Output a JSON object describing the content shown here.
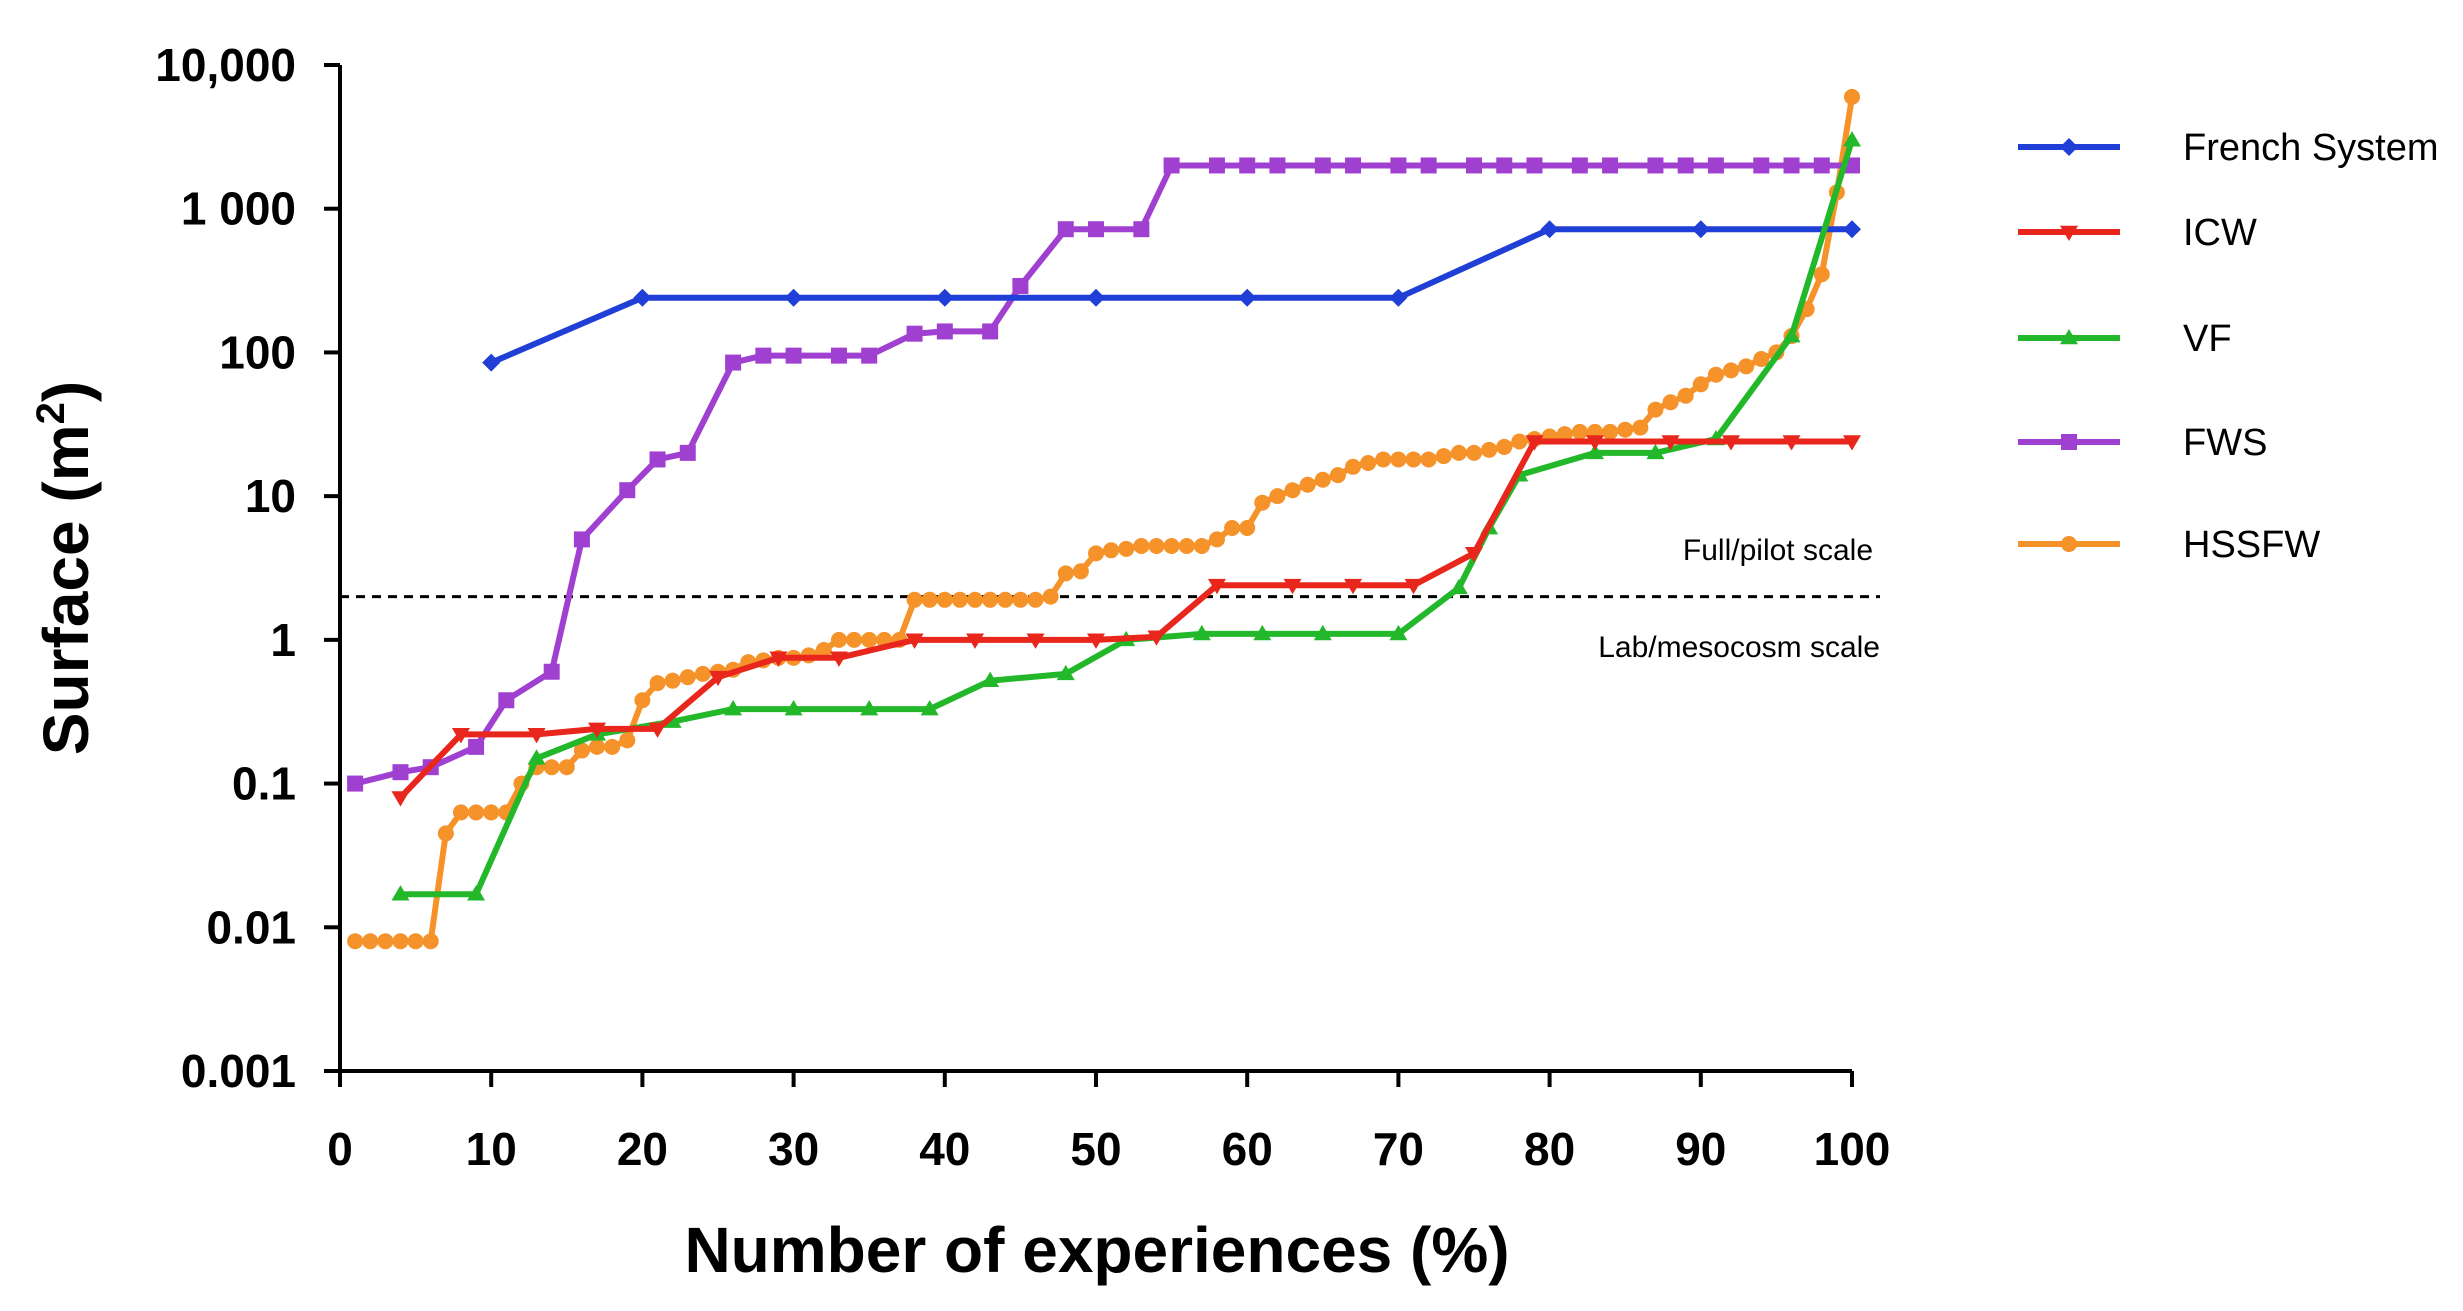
{
  "chart_data": {
    "type": "line",
    "title": "",
    "xlabel": "Number of experiences (%)",
    "ylabel": "Surface (m",
    "ylabel_superscript": "2",
    "ylabel_close": ")",
    "xlim": [
      0,
      100
    ],
    "ylim": [
      0.001,
      10000
    ],
    "yscale": "log",
    "xticks": [
      0,
      10,
      20,
      30,
      40,
      50,
      60,
      70,
      80,
      90,
      100
    ],
    "xtick_labels": [
      "0",
      "10",
      "20",
      "30",
      "40",
      "50",
      "60",
      "70",
      "80",
      "90",
      "100"
    ],
    "yticks": [
      0.001,
      0.01,
      0.1,
      1,
      10,
      100,
      1000,
      10000
    ],
    "ytick_labels": [
      "0.001",
      "0.01",
      "0.1",
      "1",
      "10",
      "100",
      "1 000",
      "10,000"
    ],
    "legend_position": "right",
    "reference_line": {
      "y": 2,
      "style": "dashed"
    },
    "annotations": [
      {
        "text": "Full/pilot scale",
        "position": "above-reference-line"
      },
      {
        "text": "Lab/mesocosm scale",
        "position": "below-reference-line"
      }
    ],
    "series": [
      {
        "name": "French System",
        "color": "#1f3fd6",
        "marker": "diamond",
        "x": [
          10,
          20,
          30,
          40,
          50,
          60,
          70,
          80,
          90,
          100
        ],
        "y": [
          85,
          240,
          240,
          240,
          240,
          240,
          240,
          720,
          720,
          720
        ]
      },
      {
        "name": "ICW",
        "color": "#e8261c",
        "marker": "triangle-down",
        "x": [
          4,
          8,
          13,
          17,
          21,
          25,
          29,
          33,
          38,
          42,
          46,
          50,
          54,
          58,
          63,
          67,
          71,
          75,
          79,
          83,
          88,
          92,
          96,
          100
        ],
        "y": [
          0.08,
          0.22,
          0.22,
          0.24,
          0.24,
          0.55,
          0.75,
          0.75,
          1.0,
          1.0,
          1.0,
          1.0,
          1.05,
          2.4,
          2.4,
          2.4,
          2.4,
          4.0,
          24,
          24,
          24,
          24,
          24,
          24
        ]
      },
      {
        "name": "VF",
        "color": "#22b82a",
        "marker": "triangle-up",
        "x": [
          4,
          9,
          13,
          17,
          22,
          26,
          30,
          35,
          39,
          43,
          48,
          52,
          57,
          61,
          65,
          70,
          74,
          76,
          78,
          83,
          87,
          91,
          96,
          100
        ],
        "y": [
          0.017,
          0.017,
          0.15,
          0.22,
          0.27,
          0.33,
          0.33,
          0.33,
          0.33,
          0.52,
          0.58,
          1.0,
          1.1,
          1.1,
          1.1,
          1.1,
          2.3,
          6,
          14,
          20,
          20,
          25,
          130,
          3000
        ]
      },
      {
        "name": "FWS",
        "color": "#a040d0",
        "marker": "square",
        "x": [
          1,
          4,
          6,
          9,
          11,
          14,
          16,
          19,
          21,
          23,
          26,
          28,
          30,
          33,
          35,
          38,
          40,
          43,
          45,
          48,
          50,
          53,
          55,
          58,
          60,
          62,
          65,
          67,
          70,
          72,
          75,
          77,
          79,
          82,
          84,
          87,
          89,
          91,
          94,
          96,
          98,
          100
        ],
        "y": [
          0.1,
          0.12,
          0.13,
          0.18,
          0.38,
          0.6,
          5,
          11,
          18,
          20,
          85,
          95,
          95,
          95,
          95,
          135,
          140,
          140,
          290,
          720,
          720,
          720,
          2000,
          2000,
          2000,
          2000,
          2000,
          2000,
          2000,
          2000,
          2000,
          2000,
          2000,
          2000,
          2000,
          2000,
          2000,
          2000,
          2000,
          2000,
          2000,
          2000
        ]
      },
      {
        "name": "HSSFW",
        "color": "#f5922a",
        "marker": "circle",
        "x": [
          1,
          2,
          3,
          4,
          5,
          6,
          7,
          8,
          9,
          10,
          11,
          12,
          13,
          14,
          15,
          16,
          17,
          18,
          19,
          20,
          21,
          22,
          23,
          24,
          25,
          26,
          27,
          28,
          29,
          30,
          31,
          32,
          33,
          34,
          35,
          36,
          37,
          38,
          39,
          40,
          41,
          42,
          43,
          44,
          45,
          46,
          47,
          48,
          49,
          50,
          51,
          52,
          53,
          54,
          55,
          56,
          57,
          58,
          59,
          60,
          61,
          62,
          63,
          64,
          65,
          66,
          67,
          68,
          69,
          70,
          71,
          72,
          73,
          74,
          75,
          76,
          77,
          78,
          79,
          80,
          81,
          82,
          83,
          84,
          85,
          86,
          87,
          88,
          89,
          90,
          91,
          92,
          93,
          94,
          95,
          96,
          97,
          98,
          99,
          100
        ],
        "y": [
          0.008,
          0.008,
          0.008,
          0.008,
          0.008,
          0.008,
          0.045,
          0.063,
          0.063,
          0.063,
          0.063,
          0.1,
          0.13,
          0.13,
          0.13,
          0.17,
          0.18,
          0.18,
          0.2,
          0.38,
          0.5,
          0.52,
          0.55,
          0.58,
          0.6,
          0.62,
          0.7,
          0.72,
          0.75,
          0.75,
          0.78,
          0.85,
          1.0,
          1.0,
          1.0,
          1.0,
          1.0,
          1.9,
          1.9,
          1.9,
          1.9,
          1.9,
          1.9,
          1.9,
          1.9,
          1.9,
          2.0,
          2.9,
          3.0,
          4.0,
          4.2,
          4.3,
          4.5,
          4.5,
          4.5,
          4.5,
          4.5,
          5.0,
          6.0,
          6.0,
          9.0,
          10,
          11,
          12,
          13,
          14,
          16,
          17,
          18,
          18,
          18,
          18,
          19,
          20,
          20,
          21,
          22,
          24,
          25,
          26,
          27,
          28,
          28,
          28,
          29,
          30,
          40,
          45,
          50,
          60,
          70,
          75,
          80,
          90,
          100,
          130,
          200,
          350,
          1300,
          6000
        ]
      }
    ]
  }
}
